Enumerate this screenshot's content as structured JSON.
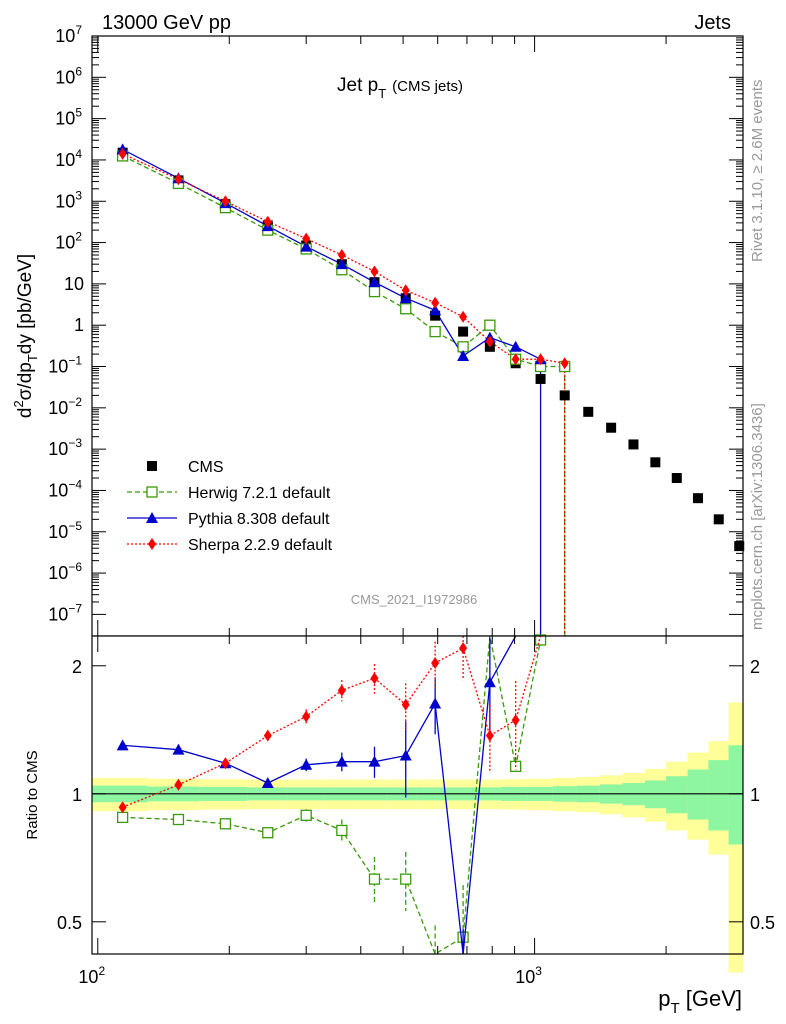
{
  "header": {
    "left": "13000 GeV pp",
    "right": "Jets"
  },
  "side": {
    "rivet": "Rivet 3.1.10, ≥ 2.6M events",
    "site": "mcplots.cern.ch [arXiv:1306.3436]"
  },
  "chart_data": [
    {
      "type": "scatter",
      "title": "Jet p",
      "title_sub": "T",
      "title_suffix": "(CMS jets)",
      "watermark": "CMS_2021_I1972986",
      "ylabel": "d²σ/dp_T dy [pb/GeV]",
      "xscale": "log",
      "yscale": "log",
      "xlim": [
        97,
        3000
      ],
      "ylim": [
        3e-08,
        10000000.0
      ],
      "legend": {
        "placement": "lower-left",
        "entries": [
          "CMS",
          "Herwig 7.2.1 default",
          "Pythia 8.308 default",
          "Sherpa 2.2.9 default"
        ]
      },
      "yticks": [
        {
          "v": 10000000.0,
          "base": "10",
          "exp": "7"
        },
        {
          "v": 1000000.0,
          "base": "10",
          "exp": "6"
        },
        {
          "v": 100000.0,
          "base": "10",
          "exp": "5"
        },
        {
          "v": 10000.0,
          "base": "10",
          "exp": "4"
        },
        {
          "v": 1000.0,
          "base": "10",
          "exp": "3"
        },
        {
          "v": 100.0,
          "base": "10",
          "exp": "2"
        },
        {
          "v": 10,
          "base": "10",
          "exp": ""
        },
        {
          "v": 1,
          "base": "1",
          "exp": ""
        },
        {
          "v": 0.1,
          "base": "10",
          "exp": "−1"
        },
        {
          "v": 0.01,
          "base": "10",
          "exp": "−2"
        },
        {
          "v": 0.001,
          "base": "10",
          "exp": "−3"
        },
        {
          "v": 0.0001,
          "base": "10",
          "exp": "−4"
        },
        {
          "v": 1e-05,
          "base": "10",
          "exp": "−5"
        },
        {
          "v": 1e-06,
          "base": "10",
          "exp": "−6"
        },
        {
          "v": 1e-07,
          "base": "10",
          "exp": "−7"
        }
      ],
      "series": [
        {
          "name": "CMS",
          "color": "#000000",
          "marker": "square",
          "x": [
            114,
            153,
            196,
            245,
            300,
            362,
            430,
            507,
            592,
            686,
            790,
            905,
            1032,
            1172,
            1327,
            1497,
            1684,
            1890,
            2116,
            2366,
            2640,
            2941
          ],
          "y": [
            15000,
            3200,
            850,
            260,
            85,
            30,
            11,
            4.5,
            1.7,
            0.7,
            0.3,
            0.12,
            0.05,
            0.02,
            0.008,
            0.0033,
            0.0013,
            0.00048,
            0.0002,
            6.5e-05,
            2e-05,
            4.5e-06
          ]
        },
        {
          "name": "Herwig 7.2.1 default",
          "color": "#3a9a0a",
          "marker": "open-square",
          "x": [
            114,
            153,
            196,
            245,
            300,
            362,
            430,
            507,
            592,
            686,
            790,
            905,
            1032,
            1172
          ],
          "y": [
            12500,
            2700,
            700,
            200,
            70,
            22,
            6.5,
            2.5,
            0.7,
            0.3,
            1.0,
            0.15,
            0.1,
            0.1
          ]
        },
        {
          "name": "Pythia 8.308 default",
          "color": "#0000cc",
          "marker": "triangle",
          "x": [
            114,
            153,
            196,
            245,
            300,
            362,
            430,
            507,
            592,
            686,
            790,
            905,
            1032
          ],
          "y": [
            18000,
            3600,
            900,
            250,
            80,
            30,
            11,
            4.5,
            2.3,
            0.18,
            0.5,
            0.3,
            0.15
          ]
        },
        {
          "name": "Sherpa 2.2.9 default",
          "color": "#ff0000",
          "marker": "diamond",
          "x": [
            114,
            153,
            196,
            245,
            300,
            362,
            430,
            507,
            592,
            686,
            790,
            905,
            1032,
            1172
          ],
          "y": [
            14000,
            3400,
            1000,
            320,
            125,
            50,
            20,
            7,
            3.5,
            1.6,
            0.4,
            0.15,
            0.15,
            0.12
          ]
        }
      ]
    },
    {
      "type": "line",
      "ylabel": "Ratio to CMS",
      "xlabel": "p_T [GeV]",
      "xscale": "log",
      "yscale": "log",
      "xlim": [
        97,
        3000
      ],
      "ylim": [
        0.42,
        2.35
      ],
      "yticks": [
        0.5,
        1,
        2
      ],
      "xticks": [
        {
          "v": 100,
          "base": "10",
          "exp": "2"
        },
        {
          "v": 1000,
          "base": "10",
          "exp": "3"
        }
      ],
      "band_edges": [
        97,
        130,
        170,
        220,
        270,
        330,
        390,
        460,
        540,
        630,
        730,
        840,
        960,
        1100,
        1250,
        1410,
        1590,
        1790,
        2000,
        2240,
        2500,
        2780,
        3000
      ],
      "stat_band": {
        "color": "#8ef5a0",
        "lo": [
          0.955,
          0.96,
          0.962,
          0.965,
          0.965,
          0.965,
          0.965,
          0.965,
          0.965,
          0.965,
          0.965,
          0.962,
          0.962,
          0.958,
          0.955,
          0.948,
          0.94,
          0.925,
          0.9,
          0.87,
          0.82,
          0.76
        ],
        "hi": [
          1.045,
          1.04,
          1.038,
          1.035,
          1.035,
          1.035,
          1.035,
          1.035,
          1.035,
          1.035,
          1.035,
          1.038,
          1.038,
          1.042,
          1.045,
          1.052,
          1.06,
          1.075,
          1.1,
          1.14,
          1.2,
          1.3
        ]
      },
      "syst_band": {
        "color": "#ffff99",
        "lo": [
          0.91,
          0.915,
          0.918,
          0.92,
          0.92,
          0.92,
          0.92,
          0.92,
          0.92,
          0.92,
          0.92,
          0.918,
          0.915,
          0.91,
          0.905,
          0.895,
          0.88,
          0.86,
          0.82,
          0.78,
          0.72,
          0.38
        ],
        "hi": [
          1.09,
          1.085,
          1.082,
          1.08,
          1.08,
          1.08,
          1.08,
          1.08,
          1.08,
          1.08,
          1.08,
          1.082,
          1.085,
          1.09,
          1.095,
          1.105,
          1.12,
          1.145,
          1.19,
          1.25,
          1.33,
          1.64
        ]
      },
      "series": [
        {
          "name": "Herwig 7.2.1 default",
          "color": "#3a9a0a",
          "marker": "open-square",
          "x": [
            114,
            153,
            196,
            245,
            300,
            362,
            430,
            507,
            592,
            686,
            790,
            905,
            1032
          ],
          "y": [
            0.88,
            0.87,
            0.85,
            0.81,
            0.89,
            0.82,
            0.63,
            0.63,
            0.37,
            0.46,
            3.3,
            1.16,
            2.3
          ],
          "err": [
            0.0,
            0.0,
            0.0,
            0.02,
            0.03,
            0.05,
            0.08,
            0.1,
            0.12,
            0.15,
            0.0,
            0.05,
            0.0
          ]
        },
        {
          "name": "Pythia 8.308 default",
          "color": "#0000cc",
          "marker": "triangle",
          "x": [
            114,
            153,
            196,
            245,
            300,
            362,
            430,
            507,
            592,
            686,
            790,
            905
          ],
          "y": [
            1.3,
            1.27,
            1.18,
            1.06,
            1.17,
            1.19,
            1.19,
            1.23,
            1.63,
            0.28,
            1.83,
            2.5
          ],
          "err": [
            0.0,
            0.0,
            0.0,
            0.02,
            0.04,
            0.06,
            0.1,
            0.25,
            0.25,
            0.2,
            0.5,
            0.0
          ]
        },
        {
          "name": "Sherpa 2.2.9 default",
          "color": "#ff0000",
          "marker": "diamond",
          "x": [
            114,
            153,
            196,
            245,
            300,
            362,
            430,
            507,
            592,
            686,
            790,
            905,
            1032
          ],
          "y": [
            0.93,
            1.05,
            1.18,
            1.37,
            1.52,
            1.75,
            1.87,
            1.62,
            2.03,
            2.2,
            1.37,
            1.49,
            2.4
          ],
          "err": [
            0.0,
            0.0,
            0.0,
            0.04,
            0.06,
            0.1,
            0.15,
            0.2,
            0.25,
            0.35,
            0.25,
            0.35,
            0.0
          ]
        }
      ]
    }
  ]
}
